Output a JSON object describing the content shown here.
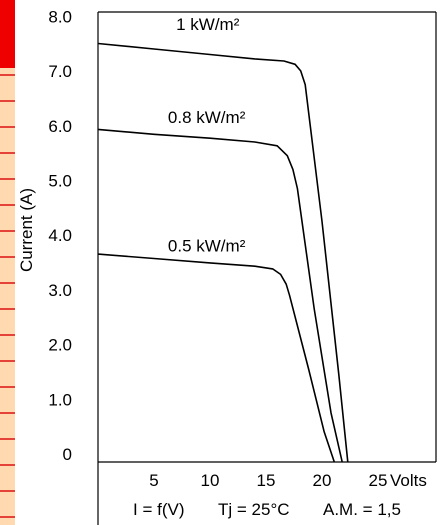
{
  "colors": {
    "strip_background": "#FFD9B0",
    "strip_top": "#EE0000",
    "strip_lines": "#DD1111",
    "axis": "#000000",
    "curve": "#000000"
  },
  "chart_data": {
    "type": "line",
    "title": "",
    "xlabel": "",
    "ylabel": "Current (A)",
    "x_unit": "Volts",
    "xlim": [
      0,
      27
    ],
    "ylim": [
      0,
      8.8
    ],
    "x_ticks": [
      {
        "value": 5,
        "label": "5"
      },
      {
        "value": 10,
        "label": "10"
      },
      {
        "value": 15,
        "label": "15"
      },
      {
        "value": 20,
        "label": "20"
      },
      {
        "value": 25,
        "label": "25"
      }
    ],
    "y_ticks": [
      {
        "value": 0,
        "label": "0"
      },
      {
        "value": 1,
        "label": "1.0"
      },
      {
        "value": 2,
        "label": "2.0"
      },
      {
        "value": 3,
        "label": "3.0"
      },
      {
        "value": 4,
        "label": "4.0"
      },
      {
        "value": 5,
        "label": "5.0"
      },
      {
        "value": 6,
        "label": "6.0"
      },
      {
        "value": 7,
        "label": "7.0"
      },
      {
        "value": 8,
        "label": "8.0"
      }
    ],
    "series": [
      {
        "name": "1 kW/m²",
        "label_at": [
          9.8,
          7.9
        ],
        "x": [
          0,
          5,
          10,
          14,
          16.6,
          17.6,
          18.1,
          18.5,
          20.0,
          21.5,
          22.3
        ],
        "y": [
          7.65,
          7.55,
          7.45,
          7.37,
          7.33,
          7.27,
          7.15,
          6.9,
          4.4,
          1.6,
          0
        ]
      },
      {
        "name": "0.8 kW/m²",
        "label_at": [
          9.7,
          6.2
        ],
        "x": [
          0,
          5,
          10,
          14,
          16.0,
          16.9,
          17.4,
          17.8,
          19.3,
          20.8,
          21.8
        ],
        "y": [
          6.08,
          5.99,
          5.92,
          5.85,
          5.78,
          5.6,
          5.35,
          5.0,
          2.8,
          0.9,
          0
        ]
      },
      {
        "name": "0.5 kW/m²",
        "label_at": [
          9.7,
          3.85
        ],
        "x": [
          0,
          5,
          10,
          14,
          15.6,
          16.3,
          16.8,
          17.1,
          18.8,
          20.2,
          21.1
        ],
        "y": [
          3.8,
          3.72,
          3.64,
          3.58,
          3.53,
          3.43,
          3.25,
          3.05,
          1.7,
          0.55,
          0
        ]
      }
    ]
  },
  "caption": {
    "i_eq": "I = f(V)",
    "tj": "Tj = 25°C",
    "am": "A.M. = 1,5"
  }
}
